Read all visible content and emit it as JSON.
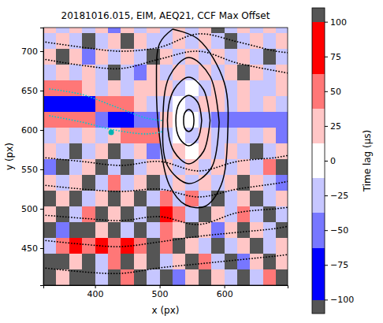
{
  "chart_data": {
    "type": "heatmap",
    "title": "20181016.015, EIM, AEQ21, CCF Max Offset",
    "x_label": "x (px)",
    "y_label": "y (px)",
    "xlim": [
      320,
      698
    ],
    "ylim": [
      403,
      730
    ],
    "xticks": [
      400,
      500,
      600
    ],
    "yticks": [
      450,
      500,
      550,
      600,
      650,
      700
    ],
    "cell_x": [
      320,
      340,
      360,
      380,
      400,
      420,
      440,
      460,
      480,
      500,
      520,
      540,
      560,
      580,
      600,
      620,
      640,
      660,
      680,
      700
    ],
    "cell_y": [
      403,
      423,
      443,
      463,
      483,
      503,
      523,
      543,
      563,
      583,
      603,
      623,
      643,
      663,
      683,
      703,
      723,
      743
    ],
    "cells": [
      [
        -105,
        20,
        -105,
        105,
        -30,
        -105,
        40,
        -105,
        -20,
        105,
        -40,
        30,
        -105,
        15,
        -30,
        105,
        -20,
        40,
        -105
      ],
      [
        105,
        -105,
        30,
        -105,
        -20,
        45,
        -105,
        25,
        -105,
        -35,
        20,
        -105,
        40,
        -25,
        105,
        -40,
        20,
        -105,
        30
      ],
      [
        -30,
        60,
        75,
        60,
        75,
        60,
        75,
        55,
        -105,
        40,
        -105,
        25,
        -30,
        105,
        -20,
        35,
        -105,
        -25,
        20
      ],
      [
        -105,
        -40,
        105,
        -105,
        30,
        -105,
        -20,
        105,
        -30,
        60,
        35,
        -105,
        20,
        -40,
        25,
        -105,
        30,
        -20,
        105
      ],
      [
        30,
        -105,
        -25,
        40,
        -105,
        20,
        -105,
        -30,
        105,
        75,
        60,
        -20,
        -105,
        30,
        -25,
        40,
        -20,
        105,
        -30
      ],
      [
        -105,
        25,
        -105,
        -35,
        20,
        -105,
        35,
        -105,
        -20,
        60,
        -30,
        40,
        -25,
        105,
        -35,
        20,
        -105,
        -25,
        35
      ],
      [
        20,
        -35,
        30,
        -105,
        -25,
        40,
        -20,
        30,
        -105,
        -25,
        20,
        -15,
        25,
        -30,
        20,
        -105,
        35,
        -20,
        -40
      ],
      [
        -40,
        105,
        -20,
        30,
        -105,
        -25,
        105,
        -35,
        20,
        35,
        -20,
        15,
        -25,
        20,
        -35,
        25,
        -20,
        40,
        -105
      ],
      [
        25,
        -30,
        -105,
        -20,
        35,
        -105,
        -30,
        20,
        -40,
        -20,
        15,
        -10,
        20,
        -15,
        25,
        -30,
        105,
        -25,
        20
      ],
      [
        -20,
        35,
        -25,
        30,
        -15,
        25,
        40,
        45,
        50,
        -20,
        10,
        -15,
        15,
        -20,
        -30,
        20,
        -25,
        30,
        -40
      ],
      [
        50,
        45,
        40,
        50,
        -50,
        -65,
        -70,
        -60,
        -55,
        15,
        -10,
        10,
        -15,
        -50,
        -55,
        -60,
        -50,
        -45,
        -55
      ],
      [
        -75,
        -80,
        -70,
        -65,
        40,
        50,
        45,
        35,
        -20,
        -15,
        10,
        -20,
        15,
        25,
        -30,
        20,
        -25,
        35,
        -20
      ],
      [
        60,
        55,
        50,
        25,
        -20,
        30,
        -25,
        20,
        35,
        20,
        -15,
        10,
        -20,
        15,
        -35,
        25,
        -20,
        -30,
        25
      ],
      [
        -25,
        30,
        -35,
        20,
        -30,
        105,
        -20,
        -40,
        25,
        -20,
        20,
        -15,
        25,
        -25,
        30,
        -105,
        35,
        -20,
        30
      ],
      [
        35,
        -105,
        25,
        -40,
        30,
        -25,
        35,
        -20,
        -105,
        30,
        -20,
        25,
        -30,
        20,
        -25,
        30,
        -20,
        105,
        -35
      ],
      [
        -30,
        25,
        -20,
        105,
        -35,
        20,
        -105,
        30,
        -25,
        -20,
        35,
        -30,
        20,
        -35,
        105,
        -20,
        30,
        -25,
        20
      ],
      [
        20,
        -35,
        30,
        -25,
        20,
        -40,
        25,
        -20,
        35,
        -30,
        20,
        -25,
        30,
        105,
        -20,
        35,
        -30,
        20,
        -25
      ]
    ],
    "colorbar": {
      "label": "Time lag (μs)",
      "range": [
        -110,
        110
      ],
      "bounds": [
        -110,
        -100,
        -62.5,
        -37.5,
        -12.5,
        12.5,
        37.5,
        62.5,
        100,
        110
      ],
      "colors": [
        "#555555",
        "#0000ff",
        "#7777ff",
        "#c6c6ff",
        "#ffffff",
        "#ffc6c6",
        "#ff7777",
        "#ff0000",
        "#555555"
      ],
      "ticks": [
        {
          "value": -100,
          "label": "−100"
        },
        {
          "value": -75,
          "label": "−75"
        },
        {
          "value": -50,
          "label": "−50"
        },
        {
          "value": -25,
          "label": "−25"
        },
        0,
        25,
        50,
        75,
        100
      ]
    },
    "series": [
      {
        "type": "line",
        "color": "#000000",
        "line_style": "solid",
        "x": [
          553,
          551,
          545,
          539,
          537,
          539,
          545,
          551,
          553
        ],
        "y": [
          612,
          622,
          626,
          622,
          612,
          602,
          598,
          602,
          612
        ]
      },
      {
        "type": "line",
        "color": "#000000",
        "line_style": "solid",
        "x": [
          565,
          559,
          545,
          531,
          525,
          531,
          545,
          559,
          565
        ],
        "y": [
          612,
          635,
          644,
          635,
          612,
          589,
          580,
          589,
          612
        ]
      },
      {
        "type": "line",
        "color": "#000000",
        "line_style": "solid",
        "x": [
          578,
          568,
          545,
          522,
          512,
          522,
          545,
          568,
          578
        ],
        "y": [
          612,
          651,
          667,
          651,
          612,
          573,
          557,
          573,
          612
        ]
      },
      {
        "type": "line",
        "color": "#000000",
        "line_style": "solid",
        "x": [
          592,
          578,
          545,
          515,
          505,
          512,
          545,
          580,
          592
        ],
        "y": [
          610,
          668,
          692,
          668,
          612,
          555,
          532,
          552,
          610
        ]
      },
      {
        "type": "line",
        "color": "#000000",
        "line_style": "solid",
        "x": [
          520,
          560,
          600,
          605,
          595,
          570,
          540,
          515,
          500,
          495,
          500,
          520
        ],
        "y": [
          728,
          715,
          660,
          590,
          530,
          503,
          505,
          530,
          590,
          660,
          710,
          728
        ]
      },
      {
        "type": "line",
        "color": "#000000",
        "line_style": "dotted",
        "x": [
          320,
          380,
          440,
          500,
          560,
          620,
          680,
          700
        ],
        "y": [
          712,
          705,
          700,
          705,
          722,
          712,
          700,
          698
        ]
      },
      {
        "type": "line",
        "color": "#000000",
        "line_style": "dotted",
        "x": [
          320,
          380,
          440,
          500,
          560,
          620,
          680,
          700
        ],
        "y": [
          690,
          682,
          678,
          690,
          700,
          685,
          675,
          672
        ]
      },
      {
        "type": "line",
        "color": "#000000",
        "line_style": "dotted",
        "x": [
          320,
          380,
          440,
          500,
          560,
          620,
          680,
          700
        ],
        "y": [
          565,
          560,
          555,
          560,
          548,
          560,
          565,
          568
        ]
      },
      {
        "type": "line",
        "color": "#000000",
        "line_style": "dotted",
        "x": [
          320,
          380,
          440,
          500,
          560,
          620,
          680,
          700
        ],
        "y": [
          530,
          525,
          522,
          525,
          515,
          525,
          532,
          535
        ]
      },
      {
        "type": "line",
        "color": "#000000",
        "line_style": "dotted",
        "x": [
          320,
          380,
          440,
          500,
          560,
          620,
          680,
          700
        ],
        "y": [
          492,
          488,
          485,
          490,
          480,
          495,
          500,
          502
        ]
      },
      {
        "type": "line",
        "color": "#000000",
        "line_style": "dotted",
        "x": [
          320,
          380,
          440,
          500,
          560,
          620,
          680,
          700
        ],
        "y": [
          460,
          455,
          452,
          458,
          465,
          470,
          475,
          478
        ]
      },
      {
        "type": "line",
        "color": "#000000",
        "line_style": "dotted",
        "x": [
          320,
          380,
          440,
          500,
          560,
          620,
          680,
          700
        ],
        "y": [
          425,
          420,
          418,
          425,
          430,
          435,
          440,
          442
        ]
      },
      {
        "type": "line",
        "color": "#00cccc",
        "line_style": "dotted",
        "x": [
          330,
          380,
          430,
          480,
          505
        ],
        "y": [
          652,
          645,
          630,
          615,
          612
        ]
      },
      {
        "type": "line",
        "color": "#00cccc",
        "line_style": "dotted",
        "x": [
          330,
          380,
          430,
          480,
          505
        ],
        "y": [
          618,
          610,
          600,
          595,
          598
        ]
      },
      {
        "type": "scatter",
        "color": "#00b3b3",
        "marker": "circle",
        "x": [
          425
        ],
        "y": [
          597
        ]
      }
    ]
  }
}
